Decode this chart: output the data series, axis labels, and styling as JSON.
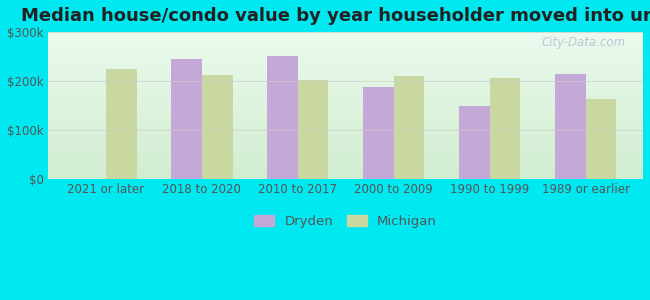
{
  "title": "Median house/condo value by year householder moved into unit",
  "categories": [
    "2021 or later",
    "2018 to 2020",
    "2010 to 2017",
    "2000 to 2009",
    "1990 to 1999",
    "1989 or earlier"
  ],
  "dryden_values": [
    null,
    245000,
    252000,
    187000,
    148000,
    215000
  ],
  "michigan_values": [
    224000,
    213000,
    201000,
    210000,
    206000,
    162000
  ],
  "dryden_color": "#c4a8d8",
  "michigan_color": "#c8d8a0",
  "background_outer": "#00e8f0",
  "ylim": [
    0,
    300000
  ],
  "yticks": [
    0,
    100000,
    200000,
    300000
  ],
  "ytick_labels": [
    "$0",
    "$100k",
    "$200k",
    "$300k"
  ],
  "bar_width": 0.32,
  "title_fontsize": 13,
  "tick_fontsize": 8.5,
  "legend_labels": [
    "Dryden",
    "Michigan"
  ],
  "watermark": "City-Data.com"
}
